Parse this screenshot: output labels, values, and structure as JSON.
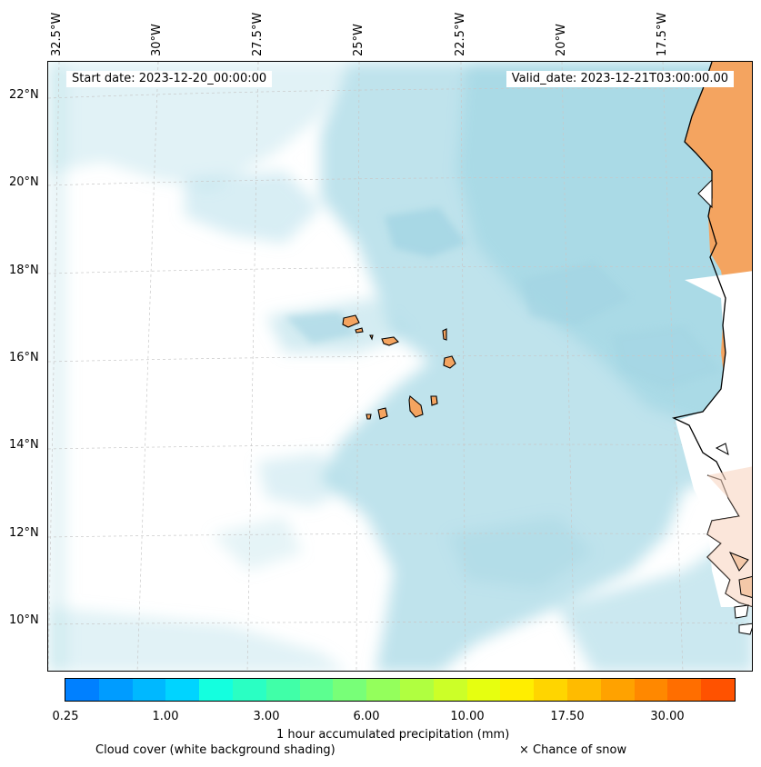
{
  "map": {
    "start_date": "Start date: 2023-12-20_00:00:00",
    "valid_date": "Valid_date: 2023-12-21T03:00:00.00",
    "longitude_labels": [
      "32.5°W",
      "30°W",
      "27.5°W",
      "25°W",
      "22.5°W",
      "20°W",
      "17.5°W"
    ],
    "latitude_labels": [
      "22°N",
      "20°N",
      "18°N",
      "16°N",
      "14°N",
      "12°N",
      "10°N"
    ],
    "colors": {
      "cloud": "#a9d9e6",
      "land": "#f4a460",
      "coast": "#000000",
      "grid": "#c8c8c8"
    }
  },
  "colorbar": {
    "title": "1 hour accumulated precipitation (mm)",
    "tick_labels": [
      "0.25",
      "1.00",
      "3.00",
      "6.00",
      "10.00",
      "17.50",
      "30.00"
    ],
    "colors": [
      "#0080ff",
      "#009cff",
      "#00b8ff",
      "#00d4ff",
      "#14ffdf",
      "#2affc3",
      "#40ffa8",
      "#5cff90",
      "#78ff78",
      "#94ff5c",
      "#b0ff40",
      "#ccff28",
      "#e6ff10",
      "#ffee00",
      "#ffd500",
      "#ffbb00",
      "#ffa200",
      "#ff8800",
      "#ff6e00",
      "#ff5200"
    ]
  },
  "legend": {
    "cloud_cover": "Cloud cover (white background shading)",
    "snow": "× Chance of snow"
  }
}
